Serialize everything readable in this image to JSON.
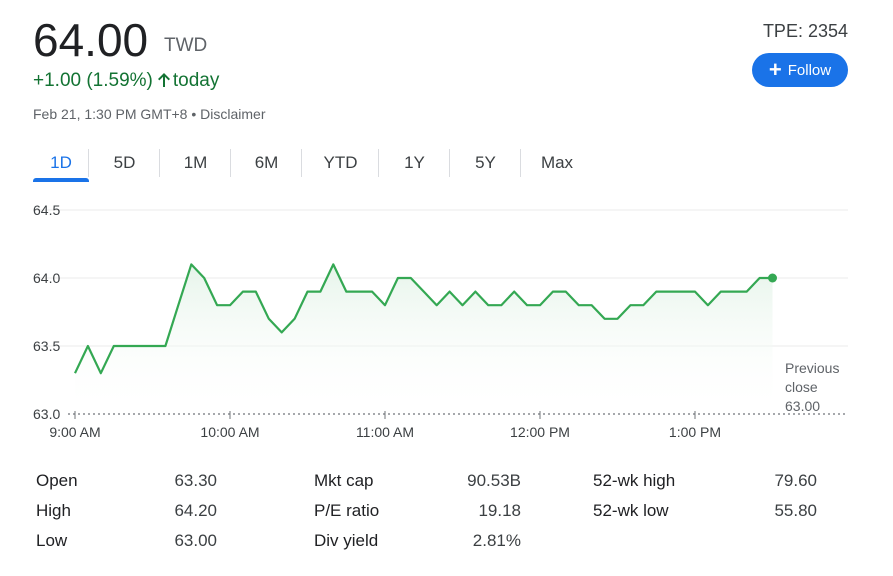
{
  "quote": {
    "price": "64.00",
    "currency": "TWD",
    "change": "+1.00 (1.59%)",
    "change_suffix": "today",
    "timestamp": "Feb 21, 1:30 PM GMT+8",
    "separator": "•",
    "disclaimer": "Disclaimer",
    "ticker": "TPE: 2354",
    "follow_label": "Follow",
    "up_color": "#137333",
    "accent_color": "#1a73e8"
  },
  "tabs": [
    "1D",
    "5D",
    "1M",
    "6M",
    "YTD",
    "1Y",
    "5Y",
    "Max"
  ],
  "active_tab": "1D",
  "chart_data": {
    "type": "line",
    "x_tick_labels": [
      "9:00 AM",
      "10:00 AM",
      "11:00 AM",
      "12:00 PM",
      "1:00 PM"
    ],
    "y_tick_labels": [
      "64.5",
      "64.0",
      "63.5",
      "63.0"
    ],
    "ylim": [
      63.0,
      64.5
    ],
    "xlim_minutes": [
      0,
      270
    ],
    "previous_close": 63.0,
    "previous_close_label": [
      "Previous",
      "close",
      "63.00"
    ],
    "series": [
      {
        "x_minutes": [
          0,
          5,
          10,
          15,
          20,
          25,
          30,
          35,
          40,
          45,
          50,
          55,
          60,
          65,
          70,
          75,
          80,
          85,
          90,
          95,
          100,
          105,
          110,
          115,
          120,
          125,
          130,
          135,
          140,
          145,
          150,
          155,
          160,
          165,
          170,
          175,
          180,
          185,
          190,
          195,
          200,
          205,
          210,
          215,
          220,
          225,
          230,
          235,
          240,
          245,
          250,
          255,
          260,
          265,
          270
        ],
        "values": [
          63.3,
          63.5,
          63.3,
          63.5,
          63.5,
          63.5,
          63.5,
          63.5,
          63.8,
          64.1,
          64.0,
          63.8,
          63.8,
          63.9,
          63.9,
          63.7,
          63.6,
          63.7,
          63.9,
          63.9,
          64.1,
          63.9,
          63.9,
          63.9,
          63.8,
          64.0,
          64.0,
          63.9,
          63.8,
          63.9,
          63.8,
          63.9,
          63.8,
          63.8,
          63.9,
          63.8,
          63.8,
          63.9,
          63.9,
          63.8,
          63.8,
          63.7,
          63.7,
          63.8,
          63.8,
          63.9,
          63.9,
          63.9,
          63.9,
          63.8,
          63.9,
          63.9,
          63.9,
          64.0,
          64.0
        ]
      }
    ],
    "line_color": "#34a853",
    "grid": true
  },
  "stats": [
    [
      {
        "label": "Open",
        "value": "63.30"
      },
      {
        "label": "High",
        "value": "64.20"
      },
      {
        "label": "Low",
        "value": "63.00"
      }
    ],
    [
      {
        "label": "Mkt cap",
        "value": "90.53B"
      },
      {
        "label": "P/E ratio",
        "value": "19.18"
      },
      {
        "label": "Div yield",
        "value": "2.81%"
      }
    ],
    [
      {
        "label": "52-wk high",
        "value": "79.60"
      },
      {
        "label": "52-wk low",
        "value": "55.80"
      }
    ]
  ]
}
